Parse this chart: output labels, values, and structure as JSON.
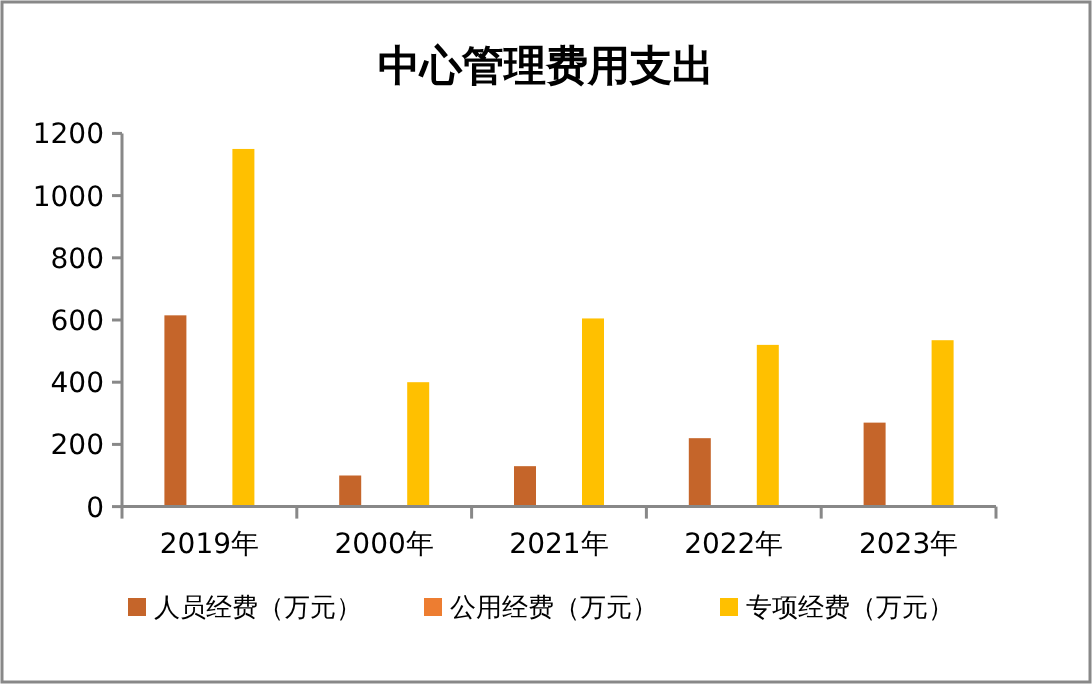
{
  "chart_data": {
    "type": "bar",
    "title": "中心管理费用支出",
    "categories": [
      "2019年",
      "2000年",
      "2021年",
      "2022年",
      "2023年"
    ],
    "series": [
      {
        "name": "人员经费（万元）",
        "color": "#c5652a",
        "values": [
          615,
          100,
          130,
          220,
          270
        ]
      },
      {
        "name": "公用经费（万元）",
        "color": "#ed7d31",
        "values": [
          null,
          null,
          null,
          null,
          null
        ]
      },
      {
        "name": "专项经费（万元）",
        "color": "#ffc000",
        "values": [
          1150,
          400,
          605,
          520,
          535
        ]
      }
    ],
    "ylim": [
      0,
      1200
    ],
    "yticks": [
      0,
      200,
      400,
      600,
      800,
      1000,
      1200
    ],
    "grid": false,
    "legend": "bottom"
  }
}
